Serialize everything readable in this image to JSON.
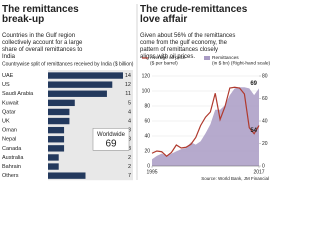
{
  "chart_data": [
    {
      "type": "hbar",
      "title": "The remittances break-up",
      "subtitle": "Countries in the Gulf region collectively account for a large share of overall remittances to India",
      "axis_label": "Countrywise split of remittances received by India ($ billion)",
      "categories": [
        "UAE",
        "US",
        "Saudi Arabia",
        "Kuwait",
        "Qatar",
        "UK",
        "Oman",
        "Nepal",
        "Canada",
        "Australia",
        "Bahrain",
        "Others"
      ],
      "values": [
        14,
        12,
        11,
        5,
        4,
        4,
        3,
        3,
        3,
        2,
        2,
        7
      ],
      "color": "#23395d",
      "annotation": {
        "label": "Worldwide",
        "value": 69
      }
    },
    {
      "type": "line",
      "title": "The crude-remittances love affair",
      "subtitle": "Given about 56% of the remittances come from the gulf economy, the pattern of remittances closely aligns with oil prices.",
      "x": [
        1995,
        1996,
        1997,
        1998,
        1999,
        2000,
        2001,
        2002,
        2003,
        2004,
        2005,
        2006,
        2007,
        2008,
        2009,
        2010,
        2011,
        2012,
        2013,
        2014,
        2015,
        2016,
        2017
      ],
      "series": [
        {
          "name": "Average oil price ($ per barrel)",
          "color": "#b03a2e",
          "values": [
            17,
            20,
            19,
            13,
            18,
            28,
            24,
            25,
            29,
            38,
            54,
            65,
            72,
            97,
            62,
            79,
            104,
            105,
            104,
            96,
            51,
            43,
            54
          ]
        },
        {
          "name": "Remittances (in $ bn) (Right-hand scale)",
          "color": "#a99bc4",
          "axis": "y2",
          "values": [
            6,
            9,
            11,
            9,
            11,
            13,
            15,
            16,
            21,
            19,
            22,
            29,
            37,
            50,
            50,
            54,
            63,
            69,
            70,
            70,
            69,
            63,
            69
          ]
        }
      ],
      "xlim": [
        1995,
        2017
      ],
      "xticks": [
        1995,
        2017
      ],
      "ylim": [
        0,
        120
      ],
      "yticks": [
        0,
        20,
        40,
        60,
        80,
        100,
        120
      ],
      "y2lim": [
        0,
        80
      ],
      "y2ticks": [
        0,
        20,
        40,
        60,
        80
      ],
      "source": "Source: World Bank, JM Financial"
    }
  ]
}
